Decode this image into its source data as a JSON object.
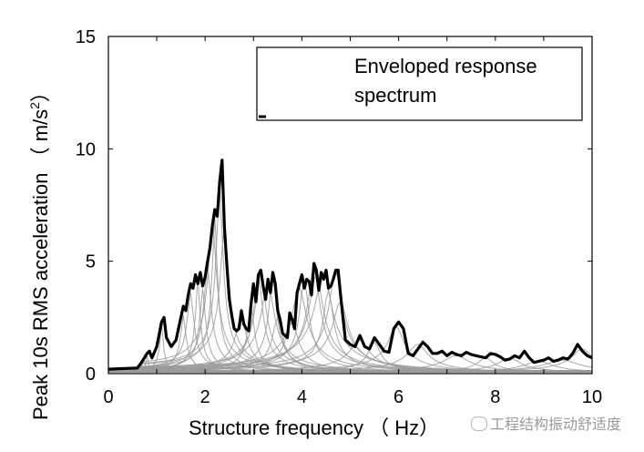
{
  "chart_data": {
    "type": "line",
    "xlabel": "Structure frequency （ Hz）",
    "ylabel": "Peak 10s RMS acceleration （ m/s",
    "ylabel_sup": "2",
    "ylabel_close": "）",
    "xlim": [
      0,
      10
    ],
    "ylim": [
      0,
      15
    ],
    "x_ticks": [
      "0",
      "2",
      "4",
      "6",
      "8",
      "10"
    ],
    "y_ticks": [
      "0",
      "5",
      "10",
      "15"
    ],
    "grid": false,
    "legend": {
      "position": "top-right",
      "lines": [
        "Enveloped response",
        "spectrum"
      ]
    },
    "envelope": {
      "name": "Enveloped response spectrum",
      "color": "#000000",
      "x": [
        0,
        0.6,
        0.7,
        0.8,
        0.85,
        0.9,
        1.0,
        1.1,
        1.15,
        1.2,
        1.3,
        1.4,
        1.5,
        1.55,
        1.6,
        1.65,
        1.7,
        1.75,
        1.8,
        1.85,
        1.9,
        1.95,
        2.0,
        2.05,
        2.1,
        2.15,
        2.2,
        2.25,
        2.3,
        2.35,
        2.4,
        2.45,
        2.5,
        2.55,
        2.6,
        2.65,
        2.7,
        2.75,
        2.8,
        2.85,
        2.9,
        2.95,
        3.0,
        3.05,
        3.1,
        3.15,
        3.2,
        3.25,
        3.3,
        3.35,
        3.4,
        3.45,
        3.5,
        3.55,
        3.6,
        3.65,
        3.7,
        3.75,
        3.8,
        3.85,
        3.9,
        3.95,
        4.0,
        4.05,
        4.1,
        4.15,
        4.2,
        4.25,
        4.3,
        4.35,
        4.4,
        4.45,
        4.5,
        4.55,
        4.6,
        4.65,
        4.7,
        4.75,
        4.8,
        4.85,
        4.9,
        5.0,
        5.1,
        5.2,
        5.3,
        5.4,
        5.5,
        5.6,
        5.7,
        5.8,
        5.9,
        6.0,
        6.1,
        6.2,
        6.3,
        6.4,
        6.5,
        6.6,
        6.7,
        6.8,
        6.9,
        7.0,
        7.1,
        7.2,
        7.3,
        7.4,
        7.5,
        7.6,
        7.7,
        7.8,
        7.9,
        8.0,
        8.1,
        8.2,
        8.3,
        8.4,
        8.5,
        8.6,
        8.7,
        8.8,
        8.9,
        9.0,
        9.1,
        9.2,
        9.3,
        9.4,
        9.5,
        9.6,
        9.7,
        9.8,
        9.9,
        10.0
      ],
      "y": [
        0.2,
        0.25,
        0.55,
        0.9,
        1.0,
        0.7,
        1.2,
        2.3,
        2.5,
        1.6,
        1.2,
        1.5,
        2.5,
        3.0,
        2.8,
        3.5,
        4.0,
        3.8,
        4.4,
        4.0,
        4.5,
        3.9,
        4.3,
        5.0,
        5.6,
        6.6,
        7.3,
        7.0,
        8.5,
        9.5,
        6.5,
        4.8,
        3.3,
        2.6,
        2.0,
        1.9,
        2.0,
        2.8,
        2.2,
        2.0,
        1.9,
        3.1,
        4.0,
        3.2,
        4.4,
        4.6,
        3.9,
        3.3,
        4.2,
        3.6,
        4.5,
        4.0,
        2.8,
        2.4,
        1.8,
        1.7,
        1.6,
        2.7,
        2.4,
        2.0,
        3.6,
        4.0,
        4.4,
        3.8,
        4.2,
        4.1,
        3.5,
        4.9,
        4.6,
        3.7,
        4.5,
        4.2,
        4.6,
        3.8,
        3.9,
        4.2,
        4.6,
        4.6,
        3.5,
        2.5,
        1.5,
        1.3,
        1.2,
        1.7,
        1.2,
        1.1,
        1.6,
        1.3,
        1.0,
        0.95,
        2.0,
        2.3,
        2.0,
        0.9,
        0.8,
        1.1,
        1.4,
        1.2,
        0.9,
        0.9,
        1.0,
        0.8,
        0.95,
        0.85,
        0.8,
        0.95,
        0.85,
        0.8,
        0.75,
        0.7,
        0.9,
        0.85,
        0.75,
        0.6,
        0.65,
        0.8,
        0.7,
        1.0,
        0.7,
        0.5,
        0.55,
        0.6,
        0.7,
        0.55,
        0.6,
        0.7,
        0.65,
        0.9,
        1.3,
        1.0,
        0.8,
        0.7
      ]
    },
    "individual_spectra": {
      "color": "#9a9a9a",
      "peaks": [
        [
          0.8,
          0.8
        ],
        [
          1.1,
          2.2
        ],
        [
          1.55,
          2.6
        ],
        [
          1.7,
          3.6
        ],
        [
          1.85,
          4.3
        ],
        [
          1.95,
          3.8
        ],
        [
          2.05,
          4.8
        ],
        [
          2.15,
          6.8
        ],
        [
          2.2,
          7.1
        ],
        [
          2.3,
          8.4
        ],
        [
          2.4,
          6.6
        ],
        [
          2.75,
          2.6
        ],
        [
          2.95,
          3.0
        ],
        [
          3.1,
          4.4
        ],
        [
          3.15,
          4.5
        ],
        [
          3.3,
          4.1
        ],
        [
          3.4,
          4.4
        ],
        [
          3.5,
          2.5
        ],
        [
          3.8,
          2.3
        ],
        [
          3.95,
          3.8
        ],
        [
          4.05,
          4.2
        ],
        [
          4.25,
          4.8
        ],
        [
          4.3,
          4.4
        ],
        [
          4.45,
          4.5
        ],
        [
          4.55,
          3.7
        ],
        [
          4.7,
          4.6
        ],
        [
          4.8,
          3.2
        ],
        [
          5.2,
          1.5
        ],
        [
          5.5,
          1.4
        ],
        [
          5.95,
          2.1
        ],
        [
          6.4,
          1.3
        ],
        [
          7.2,
          0.8
        ],
        [
          7.8,
          0.7
        ],
        [
          8.3,
          0.7
        ],
        [
          8.9,
          0.55
        ],
        [
          9.4,
          0.6
        ],
        [
          9.8,
          1.1
        ]
      ]
    }
  },
  "watermark": {
    "text": "工程结构振动舒适度"
  }
}
